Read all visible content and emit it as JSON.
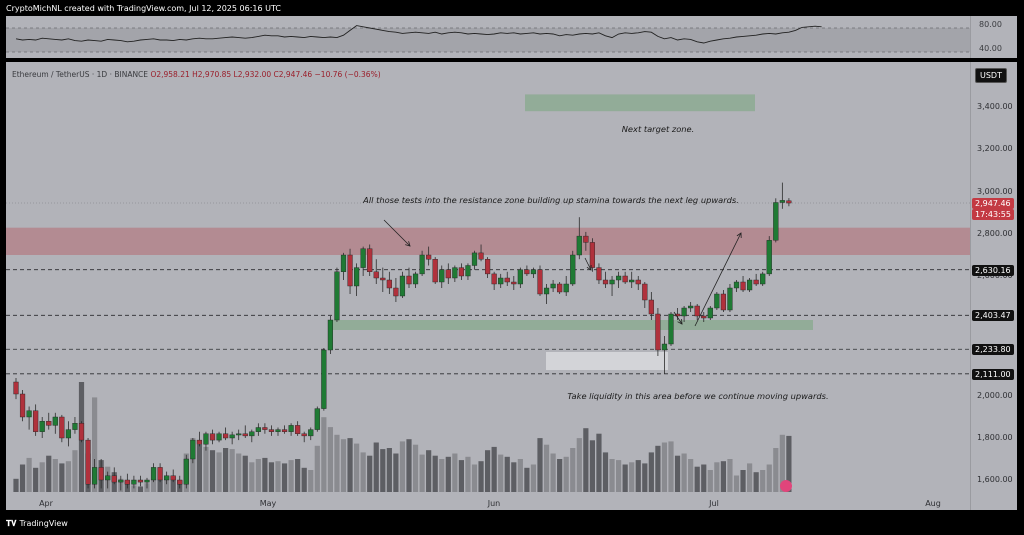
{
  "header": {
    "text": "CryptoMichNL created with TradingView.com, Jul 12, 2025 06:16 UTC"
  },
  "symbol": {
    "name": "Ethereum / TetherUS · 1D · BINANCE",
    "ohlc": "O2,958.21  H2,970.85  L2,932.00  C2,947.46  −10.76 (−0.36%)"
  },
  "currency_badge": "USDT",
  "oscillator": {
    "ticks": [
      "80.00",
      "40.00"
    ],
    "ylim": [
      20,
      90
    ],
    "upper_band": 70,
    "lower_band": 30,
    "values": [
      52,
      50,
      51,
      50,
      53,
      52,
      51,
      50,
      52,
      49,
      48,
      50,
      49,
      48,
      51,
      50,
      49,
      47,
      48,
      50,
      51,
      52,
      50,
      50,
      49,
      51,
      50,
      52,
      53,
      52,
      52,
      53,
      54,
      55,
      54,
      53,
      54,
      56,
      58,
      57,
      57,
      55,
      56,
      55,
      54,
      56,
      55,
      54,
      55,
      54,
      58,
      66,
      74,
      72,
      70,
      68,
      66,
      64,
      63,
      61,
      62,
      63,
      62,
      61,
      63,
      60,
      62,
      63,
      62,
      60,
      61,
      60,
      59,
      60,
      62,
      61,
      62,
      60,
      61,
      62,
      60,
      61,
      60,
      57,
      59,
      58,
      60,
      61,
      60,
      62,
      57,
      54,
      60,
      62,
      61,
      62,
      64,
      63,
      56,
      52,
      54,
      50,
      52,
      51,
      47,
      45,
      48,
      50,
      52,
      53,
      55,
      56,
      57,
      58,
      60,
      61,
      60,
      62,
      63,
      66,
      71,
      72,
      73,
      72
    ]
  },
  "chart_data": {
    "type": "candlestick",
    "title": "Ethereum / TetherUS",
    "ylabel": "USDT",
    "ylim": [
      1560,
      3650
    ],
    "x_ticks": [
      "Apr",
      "May",
      "Jun",
      "Jul",
      "Aug"
    ],
    "y_ticks": [
      "3,400.00",
      "3,200.00",
      "3,000.00",
      "2,800.00",
      "2,600.00",
      "2,000.00",
      "1,800.00",
      "1,600.00"
    ],
    "price_levels": [
      {
        "value": 2947.46,
        "label": "2,947.46",
        "sub": "17:43:55",
        "color": "#c33a43"
      },
      {
        "value": 2630.16,
        "label": "2,630.16",
        "color": "#111111"
      },
      {
        "value": 2403.47,
        "label": "2,403.47",
        "color": "#111111"
      },
      {
        "value": 2233.8,
        "label": "2,233.80",
        "color": "#111111"
      },
      {
        "value": 2111.0,
        "label": "2,111.00",
        "color": "#111111"
      }
    ],
    "zones": [
      {
        "name": "resistance",
        "from": 2700,
        "to": 2830,
        "color": "#b3868e"
      },
      {
        "name": "next-target",
        "from": 3380,
        "to": 3460,
        "color": "#8eab95"
      },
      {
        "name": "support",
        "from": 2330,
        "to": 2380,
        "color": "#8eab95"
      },
      {
        "name": "liquidity",
        "from": 2130,
        "to": 2220,
        "color": "#d6d7dc"
      }
    ],
    "annotations": {
      "resistance": "All those tests into the resistance zone building up stamina towards the next leg upwards.",
      "target": "Next target zone.",
      "liquidity": "Take liquidity in this area before we continue moving upwards."
    },
    "candles": [
      [
        2070,
        2090,
        1985,
        2010
      ],
      [
        2010,
        2030,
        1880,
        1900
      ],
      [
        1900,
        1950,
        1840,
        1930
      ],
      [
        1930,
        1960,
        1810,
        1830
      ],
      [
        1830,
        1900,
        1800,
        1880
      ],
      [
        1880,
        1920,
        1840,
        1860
      ],
      [
        1860,
        1920,
        1820,
        1900
      ],
      [
        1900,
        1910,
        1780,
        1800
      ],
      [
        1800,
        1880,
        1760,
        1840
      ],
      [
        1840,
        1900,
        1820,
        1870
      ],
      [
        1870,
        1880,
        1780,
        1790
      ],
      [
        1790,
        1800,
        1560,
        1580
      ],
      [
        1580,
        1700,
        1560,
        1660
      ],
      [
        1660,
        1700,
        1560,
        1600
      ],
      [
        1600,
        1640,
        1560,
        1620
      ],
      [
        1620,
        1660,
        1580,
        1590
      ],
      [
        1590,
        1620,
        1550,
        1600
      ],
      [
        1600,
        1630,
        1560,
        1580
      ],
      [
        1580,
        1620,
        1560,
        1600
      ],
      [
        1600,
        1620,
        1570,
        1590
      ],
      [
        1590,
        1610,
        1560,
        1600
      ],
      [
        1600,
        1680,
        1590,
        1660
      ],
      [
        1660,
        1680,
        1590,
        1600
      ],
      [
        1600,
        1640,
        1580,
        1620
      ],
      [
        1620,
        1650,
        1590,
        1600
      ],
      [
        1600,
        1620,
        1560,
        1580
      ],
      [
        1580,
        1720,
        1560,
        1700
      ],
      [
        1700,
        1800,
        1680,
        1790
      ],
      [
        1790,
        1830,
        1760,
        1770
      ],
      [
        1770,
        1830,
        1740,
        1820
      ],
      [
        1820,
        1840,
        1770,
        1790
      ],
      [
        1790,
        1830,
        1780,
        1820
      ],
      [
        1820,
        1850,
        1790,
        1800
      ],
      [
        1800,
        1830,
        1770,
        1815
      ],
      [
        1815,
        1840,
        1790,
        1820
      ],
      [
        1820,
        1860,
        1800,
        1810
      ],
      [
        1810,
        1840,
        1780,
        1830
      ],
      [
        1830,
        1870,
        1810,
        1850
      ],
      [
        1850,
        1870,
        1820,
        1840
      ],
      [
        1840,
        1860,
        1810,
        1830
      ],
      [
        1830,
        1850,
        1810,
        1840
      ],
      [
        1840,
        1860,
        1820,
        1830
      ],
      [
        1830,
        1870,
        1810,
        1860
      ],
      [
        1860,
        1880,
        1810,
        1820
      ],
      [
        1820,
        1830,
        1780,
        1810
      ],
      [
        1810,
        1850,
        1790,
        1840
      ],
      [
        1840,
        1950,
        1830,
        1940
      ],
      [
        1940,
        2240,
        1930,
        2230
      ],
      [
        2230,
        2400,
        2210,
        2380
      ],
      [
        2380,
        2640,
        2370,
        2620
      ],
      [
        2620,
        2710,
        2580,
        2700
      ],
      [
        2700,
        2730,
        2510,
        2550
      ],
      [
        2550,
        2660,
        2500,
        2640
      ],
      [
        2640,
        2740,
        2600,
        2730
      ],
      [
        2730,
        2750,
        2600,
        2620
      ],
      [
        2620,
        2680,
        2560,
        2590
      ],
      [
        2590,
        2640,
        2520,
        2580
      ],
      [
        2580,
        2620,
        2510,
        2540
      ],
      [
        2540,
        2590,
        2470,
        2500
      ],
      [
        2500,
        2620,
        2490,
        2600
      ],
      [
        2600,
        2640,
        2540,
        2560
      ],
      [
        2560,
        2620,
        2540,
        2610
      ],
      [
        2610,
        2720,
        2600,
        2700
      ],
      [
        2700,
        2740,
        2650,
        2680
      ],
      [
        2680,
        2690,
        2560,
        2570
      ],
      [
        2570,
        2650,
        2540,
        2630
      ],
      [
        2630,
        2660,
        2560,
        2590
      ],
      [
        2590,
        2650,
        2570,
        2640
      ],
      [
        2640,
        2660,
        2580,
        2600
      ],
      [
        2600,
        2660,
        2580,
        2650
      ],
      [
        2650,
        2720,
        2630,
        2710
      ],
      [
        2710,
        2750,
        2670,
        2680
      ],
      [
        2680,
        2690,
        2590,
        2610
      ],
      [
        2610,
        2620,
        2530,
        2560
      ],
      [
        2560,
        2610,
        2540,
        2590
      ],
      [
        2590,
        2620,
        2550,
        2570
      ],
      [
        2570,
        2600,
        2530,
        2560
      ],
      [
        2560,
        2640,
        2540,
        2630
      ],
      [
        2630,
        2650,
        2600,
        2610
      ],
      [
        2610,
        2640,
        2590,
        2630
      ],
      [
        2630,
        2650,
        2500,
        2510
      ],
      [
        2510,
        2560,
        2460,
        2540
      ],
      [
        2540,
        2580,
        2520,
        2560
      ],
      [
        2560,
        2570,
        2510,
        2520
      ],
      [
        2520,
        2600,
        2500,
        2560
      ],
      [
        2560,
        2720,
        2550,
        2700
      ],
      [
        2700,
        2880,
        2680,
        2790
      ],
      [
        2790,
        2810,
        2720,
        2760
      ],
      [
        2760,
        2780,
        2620,
        2640
      ],
      [
        2640,
        2660,
        2560,
        2580
      ],
      [
        2580,
        2620,
        2540,
        2560
      ],
      [
        2560,
        2600,
        2500,
        2580
      ],
      [
        2580,
        2620,
        2540,
        2600
      ],
      [
        2600,
        2620,
        2560,
        2570
      ],
      [
        2570,
        2620,
        2540,
        2580
      ],
      [
        2580,
        2600,
        2530,
        2560
      ],
      [
        2560,
        2570,
        2440,
        2480
      ],
      [
        2480,
        2520,
        2380,
        2410
      ],
      [
        2410,
        2440,
        2200,
        2230
      ],
      [
        2230,
        2300,
        2111,
        2260
      ],
      [
        2260,
        2420,
        2250,
        2410
      ],
      [
        2410,
        2440,
        2380,
        2400
      ],
      [
        2400,
        2450,
        2370,
        2440
      ],
      [
        2440,
        2470,
        2420,
        2450
      ],
      [
        2450,
        2460,
        2380,
        2400
      ],
      [
        2400,
        2420,
        2370,
        2390
      ],
      [
        2390,
        2450,
        2380,
        2440
      ],
      [
        2440,
        2520,
        2430,
        2510
      ],
      [
        2510,
        2530,
        2420,
        2430
      ],
      [
        2430,
        2560,
        2420,
        2540
      ],
      [
        2540,
        2580,
        2520,
        2570
      ],
      [
        2570,
        2600,
        2520,
        2530
      ],
      [
        2530,
        2590,
        2520,
        2580
      ],
      [
        2580,
        2610,
        2550,
        2560
      ],
      [
        2560,
        2620,
        2550,
        2610
      ],
      [
        2610,
        2790,
        2600,
        2770
      ],
      [
        2770,
        2970,
        2760,
        2950
      ],
      [
        2950,
        3040,
        2920,
        2960
      ],
      [
        2958.21,
        2970.85,
        2932,
        2947.46
      ]
    ],
    "volumes": [
      0.12,
      0.25,
      0.31,
      0.22,
      0.27,
      0.33,
      0.3,
      0.26,
      0.28,
      0.38,
      1.0,
      0.35,
      0.86,
      0.29,
      0.23,
      0.18,
      0.12,
      0.1,
      0.06,
      0.05,
      0.08,
      0.12,
      0.11,
      0.15,
      0.14,
      0.1,
      0.35,
      0.49,
      0.43,
      0.41,
      0.38,
      0.36,
      0.4,
      0.39,
      0.35,
      0.33,
      0.27,
      0.3,
      0.31,
      0.27,
      0.28,
      0.26,
      0.29,
      0.3,
      0.22,
      0.2,
      0.42,
      0.68,
      0.59,
      0.52,
      0.48,
      0.49,
      0.44,
      0.36,
      0.33,
      0.45,
      0.39,
      0.4,
      0.35,
      0.46,
      0.48,
      0.43,
      0.34,
      0.38,
      0.33,
      0.3,
      0.32,
      0.35,
      0.29,
      0.32,
      0.25,
      0.28,
      0.38,
      0.41,
      0.34,
      0.32,
      0.27,
      0.3,
      0.22,
      0.25,
      0.49,
      0.43,
      0.35,
      0.3,
      0.32,
      0.4,
      0.49,
      0.58,
      0.47,
      0.53,
      0.36,
      0.3,
      0.29,
      0.25,
      0.27,
      0.29,
      0.26,
      0.36,
      0.42,
      0.45,
      0.46,
      0.33,
      0.35,
      0.3,
      0.23,
      0.25,
      0.2,
      0.27,
      0.28,
      0.3,
      0.15,
      0.2,
      0.26,
      0.18,
      0.2,
      0.25,
      0.4,
      0.52,
      0.51
    ]
  }
}
